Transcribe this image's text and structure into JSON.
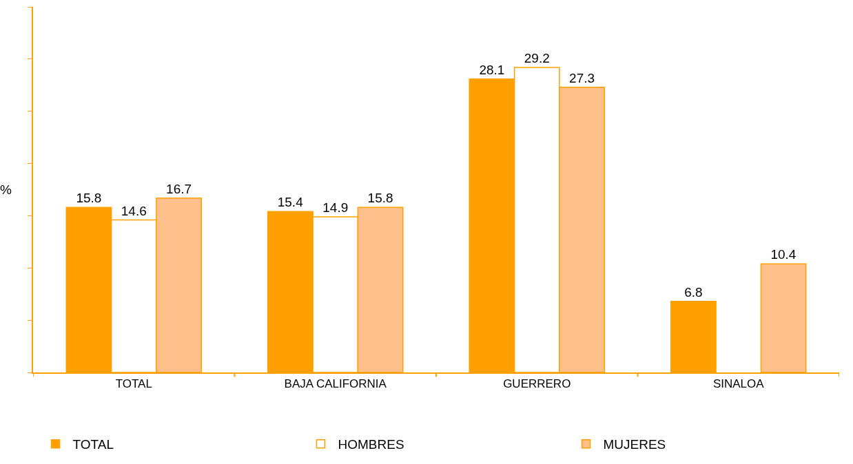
{
  "chart_data": {
    "type": "bar",
    "ylabel": "%",
    "categories": [
      "TOTAL",
      "BAJA CALIFORNIA",
      "GUERRERO",
      "SINALOA"
    ],
    "series": [
      {
        "name": "TOTAL",
        "color": "#ffa000",
        "values": [
          15.8,
          15.4,
          28.1,
          6.8
        ]
      },
      {
        "name": "HOMBRES",
        "color": "#ffffff",
        "values": [
          14.6,
          14.9,
          29.2,
          null
        ]
      },
      {
        "name": "MUJERES",
        "color": "#ffc08c",
        "values": [
          16.7,
          15.8,
          27.3,
          10.4
        ]
      }
    ],
    "ylim": [
      0,
      35
    ],
    "yticks": [
      {
        "value": 0,
        "label": null
      },
      {
        "value": 5,
        "label": null
      },
      {
        "value": 10,
        "label": null
      },
      {
        "value": 15,
        "label": null
      },
      {
        "value": 20,
        "label": null
      },
      {
        "value": 25,
        "label": null
      },
      {
        "value": 30,
        "label": null
      },
      {
        "value": 35,
        "label": null
      }
    ],
    "tick_labels": "x",
    "data_labels": true,
    "legend": "bottom"
  }
}
